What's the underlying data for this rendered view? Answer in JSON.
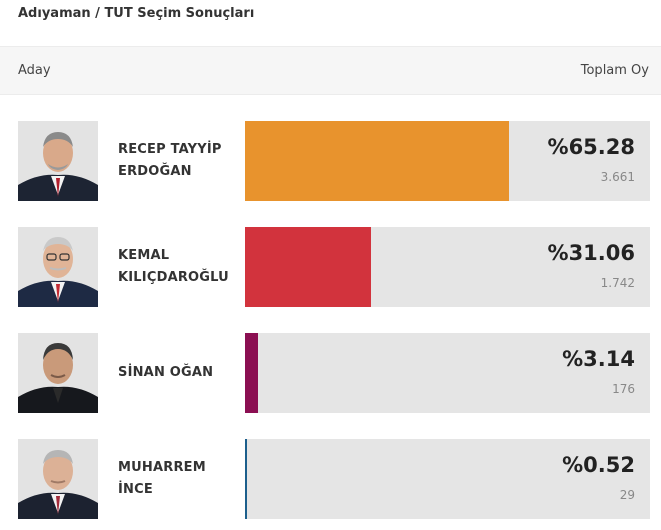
{
  "title": "Adıyaman / TUT Seçim Sonuçları",
  "header": {
    "candidate_col": "Aday",
    "total_col": "Toplam Oy"
  },
  "candidates": [
    {
      "name": "RECEP TAYYİP\nERDOĞAN",
      "percent_label": "%65.28",
      "votes": "3.661",
      "share": 0.6528,
      "color": "#e8932d"
    },
    {
      "name": "KEMAL\nKILIÇDAROĞLU",
      "percent_label": "%31.06",
      "votes": "1.742",
      "share": 0.3106,
      "color": "#d2333d"
    },
    {
      "name": "SİNAN OĞAN",
      "percent_label": "%3.14",
      "votes": "176",
      "share": 0.0314,
      "color": "#8b0f52"
    },
    {
      "name": "MUHARREM\nİNCE",
      "percent_label": "%0.52",
      "votes": "29",
      "share": 0.0052,
      "color": "#1c5f8c"
    }
  ]
}
